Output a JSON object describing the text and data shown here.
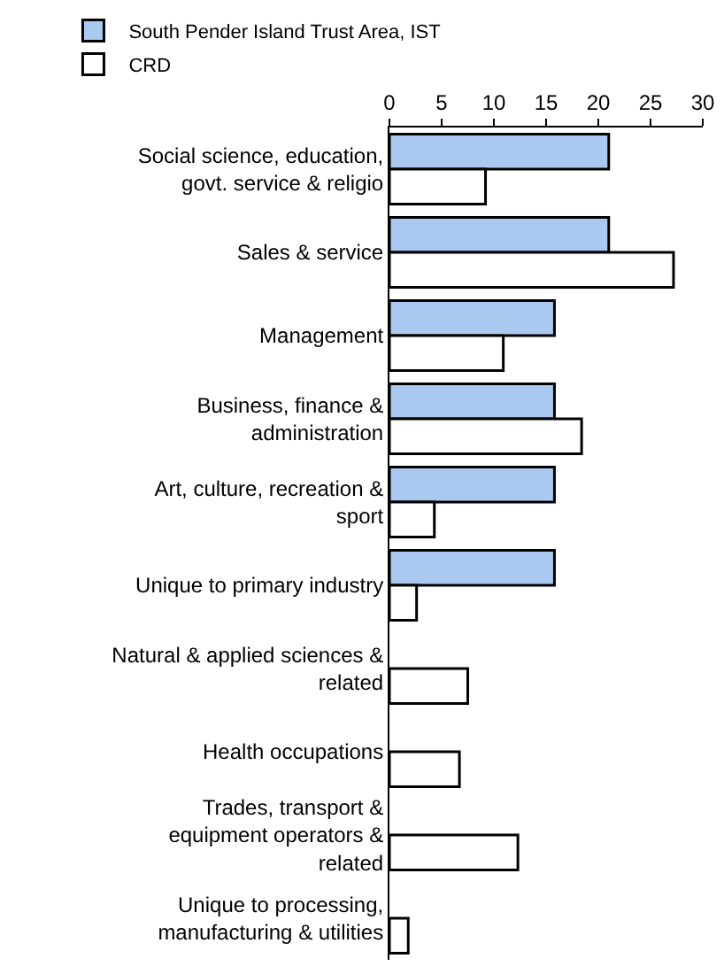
{
  "chart_data": {
    "type": "bar",
    "orientation": "horizontal",
    "categories": [
      "Social science, education, govt. service & religio",
      "Sales & service",
      "Management",
      "Business, finance & administration",
      "Art, culture, recreation & sport",
      "Unique to primary industry",
      "Natural & applied sciences & related",
      "Health occupations",
      "Trades, transport & equipment operators & related",
      "Unique to processing, manufacturing & utilities"
    ],
    "series": [
      {
        "name": "South Pender Island Trust Area, IST",
        "color": "#a9c9f0",
        "values": [
          21,
          21,
          15.8,
          15.8,
          15.8,
          15.8,
          null,
          null,
          null,
          null
        ]
      },
      {
        "name": "CRD",
        "color": "#ffffff",
        "values": [
          9.2,
          27.2,
          10.9,
          18.4,
          4.3,
          2.6,
          7.5,
          6.7,
          12.3,
          1.8
        ]
      }
    ],
    "xlim": [
      0,
      30
    ],
    "xticks": [
      0,
      5,
      10,
      15,
      20,
      25,
      30
    ],
    "grid": false,
    "legend": "top"
  }
}
